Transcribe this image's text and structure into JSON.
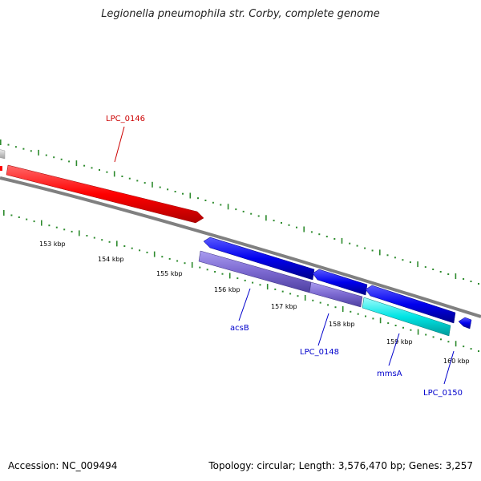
{
  "title": "Legionella pneumophila str. Corby, complete genome",
  "footer": {
    "accession": "Accession: NC_009494",
    "summary": "Topology: circular; Length: 3,576,470 bp; Genes: 3,257"
  },
  "ticks": [
    "153 kbp",
    "154 kbp",
    "155 kbp",
    "156 kbp",
    "157 kbp",
    "158 kbp",
    "159 kbp",
    "160 kbp"
  ],
  "genes": {
    "lpc0146": "LPC_0146",
    "acsB": "acsB",
    "lpc0148": "LPC_0148",
    "mmsA": "mmsA",
    "lpc0150": "LPC_0150"
  },
  "colors": {
    "forward_cds": "#ff0000",
    "reverse_cds": "#0000ee",
    "rna_feature": "#7b68d0",
    "cyan_feature": "#00e5e5",
    "backbone": "#808080",
    "gc_ticks": "#2e8b2e",
    "label_red": "#cc0000",
    "label_blue": "#0000cc"
  }
}
